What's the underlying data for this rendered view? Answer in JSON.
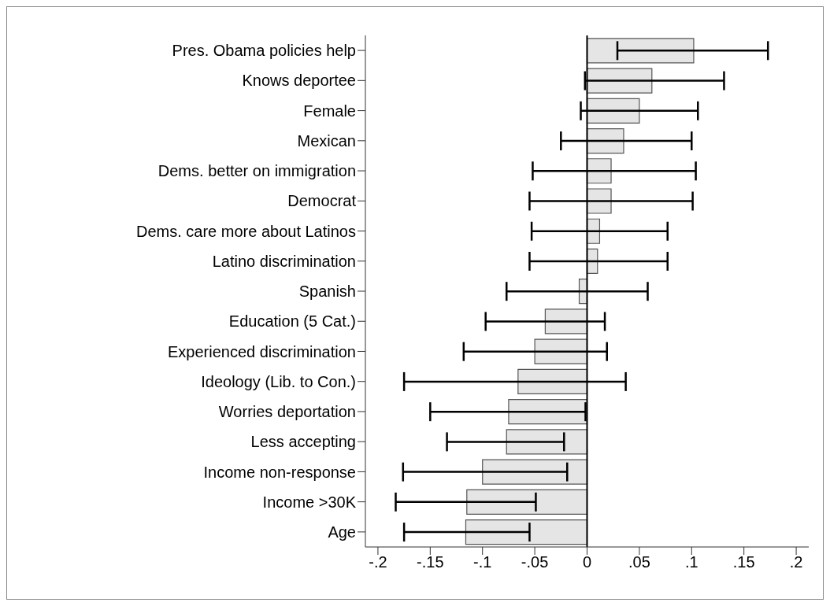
{
  "chart_data": {
    "type": "bar",
    "orientation": "horizontal",
    "categories": [
      "Pres. Obama policies help",
      "Knows deportee",
      "Female",
      "Mexican",
      "Dems. better on immigration",
      "Democrat",
      "Dems. care more about Latinos",
      "Latino discrimination",
      "Spanish",
      "Education (5 Cat.)",
      "Experienced discrimination",
      "Ideology (Lib. to Con.)",
      "Worries deportation",
      "Less accepting",
      "Income non-response",
      "Income >30K",
      "Age"
    ],
    "values": [
      0.102,
      0.062,
      0.05,
      0.035,
      0.023,
      0.023,
      0.012,
      0.01,
      -0.0075,
      -0.04,
      -0.05,
      -0.066,
      -0.075,
      -0.077,
      -0.1,
      -0.115,
      -0.116
    ],
    "errors": [
      [
        0.029,
        0.173
      ],
      [
        -0.002,
        0.131
      ],
      [
        -0.006,
        0.106
      ],
      [
        -0.025,
        0.1
      ],
      [
        -0.052,
        0.104
      ],
      [
        -0.055,
        0.101
      ],
      [
        -0.053,
        0.077
      ],
      [
        -0.055,
        0.077
      ],
      [
        -0.077,
        0.058
      ],
      [
        -0.097,
        0.017
      ],
      [
        -0.118,
        0.019
      ],
      [
        -0.175,
        0.037
      ],
      [
        -0.15,
        -0.0015
      ],
      [
        -0.134,
        -0.022
      ],
      [
        -0.176,
        -0.019
      ],
      [
        -0.183,
        -0.049
      ],
      [
        -0.175,
        -0.055
      ]
    ],
    "color": "#e5e5e5",
    "xlim": [
      -0.212,
      0.212
    ],
    "xticks": [
      {
        "value": -0.2,
        "label": "-.2"
      },
      {
        "value": -0.15,
        "label": "-.15"
      },
      {
        "value": -0.1,
        "label": "-.1"
      },
      {
        "value": -0.05,
        "label": "-.05"
      },
      0,
      {
        "value": 0.05,
        "label": ".05"
      },
      {
        "value": 0.1,
        "label": ".1"
      },
      {
        "value": 0.15,
        "label": ".15"
      },
      {
        "value": 0.2,
        "label": ".2"
      }
    ],
    "ref_lines": [
      {
        "axis": "x",
        "value": 0,
        "color": "#000000"
      }
    ],
    "grid": false,
    "legend": false
  }
}
